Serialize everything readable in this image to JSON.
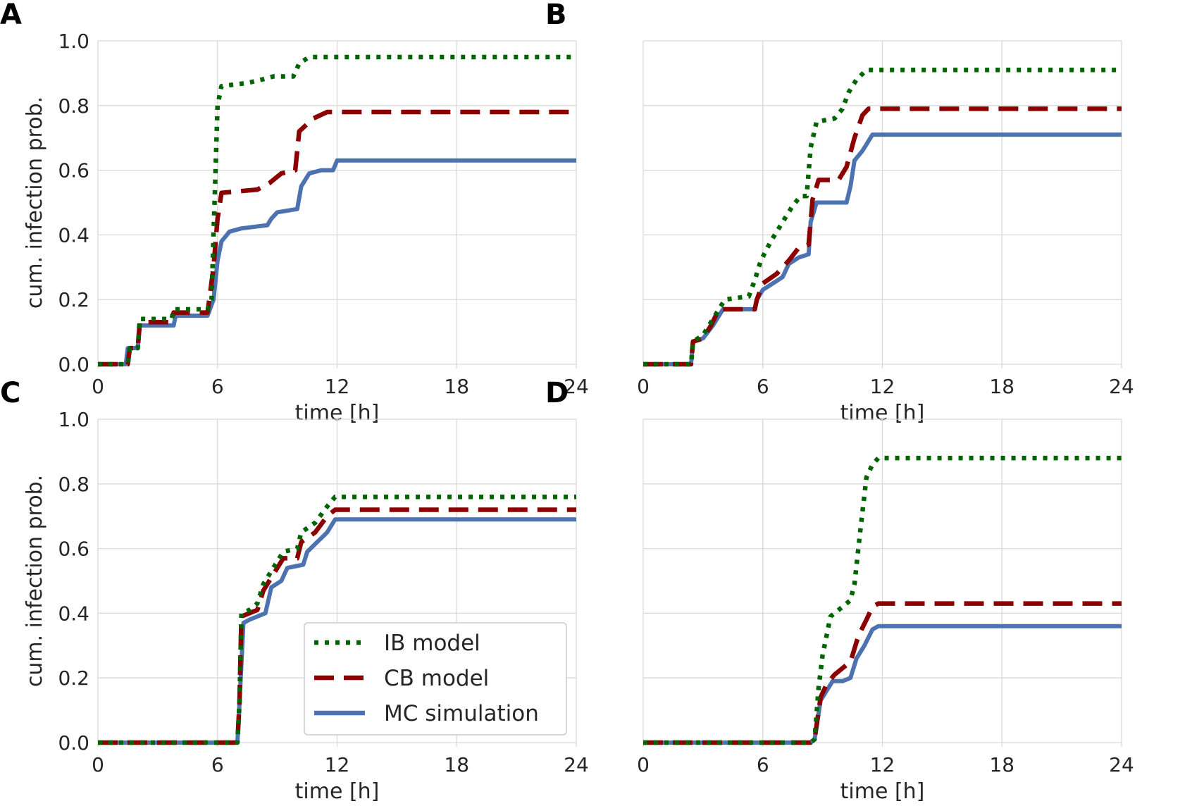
{
  "figure": {
    "panels": [
      "A",
      "B",
      "C",
      "D"
    ],
    "xlabel": "time [h]",
    "ylabel": "cum. infection prob.",
    "xticks": [
      "0",
      "6",
      "12",
      "18",
      "24"
    ],
    "yticks": [
      "0.0",
      "0.2",
      "0.4",
      "0.6",
      "0.8",
      "1.0"
    ]
  },
  "legend": {
    "items": [
      {
        "label": "IB model",
        "color": "#006400",
        "style": "dotted"
      },
      {
        "label": "CB model",
        "color": "#8b0000",
        "style": "dashed"
      },
      {
        "label": "MC simulation",
        "color": "#4c72b0",
        "style": "solid"
      }
    ],
    "placement": "lower-right (panel C)"
  },
  "chart_data": [
    {
      "panel": "A",
      "type": "line",
      "xlim": [
        0,
        24
      ],
      "ylim": [
        0,
        1
      ],
      "grid": true,
      "series": [
        {
          "name": "IB model",
          "color": "#006400",
          "style": "dotted",
          "points": [
            [
              0,
              0
            ],
            [
              1.5,
              0
            ],
            [
              1.6,
              0.05
            ],
            [
              2.0,
              0.05
            ],
            [
              2.1,
              0.14
            ],
            [
              3.7,
              0.14
            ],
            [
              3.8,
              0.17
            ],
            [
              5.5,
              0.17
            ],
            [
              5.7,
              0.2
            ],
            [
              5.8,
              0.4
            ],
            [
              6.0,
              0.8
            ],
            [
              6.2,
              0.86
            ],
            [
              7.5,
              0.87
            ],
            [
              8.2,
              0.88
            ],
            [
              8.8,
              0.89
            ],
            [
              9.8,
              0.89
            ],
            [
              10.1,
              0.93
            ],
            [
              10.6,
              0.95
            ],
            [
              24,
              0.95
            ]
          ]
        },
        {
          "name": "CB model",
          "color": "#8b0000",
          "style": "dashed",
          "points": [
            [
              0,
              0
            ],
            [
              1.5,
              0
            ],
            [
              1.6,
              0.05
            ],
            [
              2.0,
              0.05
            ],
            [
              2.1,
              0.13
            ],
            [
              3.7,
              0.13
            ],
            [
              3.8,
              0.16
            ],
            [
              5.5,
              0.16
            ],
            [
              5.8,
              0.3
            ],
            [
              6.0,
              0.45
            ],
            [
              6.2,
              0.53
            ],
            [
              8.0,
              0.54
            ],
            [
              8.6,
              0.56
            ],
            [
              9.2,
              0.59
            ],
            [
              9.9,
              0.6
            ],
            [
              10.1,
              0.72
            ],
            [
              10.8,
              0.76
            ],
            [
              11.5,
              0.78
            ],
            [
              24,
              0.78
            ]
          ]
        },
        {
          "name": "MC simulation",
          "color": "#4c72b0",
          "style": "solid",
          "points": [
            [
              0,
              0
            ],
            [
              1.4,
              0
            ],
            [
              1.5,
              0.05
            ],
            [
              2.0,
              0.05
            ],
            [
              2.1,
              0.12
            ],
            [
              3.8,
              0.12
            ],
            [
              3.9,
              0.15
            ],
            [
              5.5,
              0.15
            ],
            [
              5.8,
              0.2
            ],
            [
              6.0,
              0.32
            ],
            [
              6.2,
              0.38
            ],
            [
              6.6,
              0.41
            ],
            [
              7.2,
              0.42
            ],
            [
              8.5,
              0.43
            ],
            [
              8.7,
              0.45
            ],
            [
              9.0,
              0.47
            ],
            [
              10.0,
              0.48
            ],
            [
              10.2,
              0.55
            ],
            [
              10.6,
              0.59
            ],
            [
              11.2,
              0.6
            ],
            [
              11.8,
              0.6
            ],
            [
              12.0,
              0.63
            ],
            [
              24,
              0.63
            ]
          ]
        }
      ]
    },
    {
      "panel": "B",
      "type": "line",
      "xlim": [
        0,
        24
      ],
      "ylim": [
        0,
        1
      ],
      "grid": true,
      "series": [
        {
          "name": "IB model",
          "color": "#006400",
          "style": "dotted",
          "points": [
            [
              0,
              0
            ],
            [
              2.4,
              0
            ],
            [
              2.5,
              0.07
            ],
            [
              3.0,
              0.09
            ],
            [
              3.5,
              0.14
            ],
            [
              3.8,
              0.17
            ],
            [
              4.1,
              0.2
            ],
            [
              5.3,
              0.21
            ],
            [
              5.6,
              0.26
            ],
            [
              5.9,
              0.32
            ],
            [
              6.4,
              0.38
            ],
            [
              6.9,
              0.43
            ],
            [
              7.5,
              0.49
            ],
            [
              7.9,
              0.52
            ],
            [
              8.2,
              0.52
            ],
            [
              8.4,
              0.67
            ],
            [
              8.7,
              0.75
            ],
            [
              9.6,
              0.76
            ],
            [
              10.0,
              0.79
            ],
            [
              10.3,
              0.84
            ],
            [
              10.7,
              0.88
            ],
            [
              11.2,
              0.91
            ],
            [
              24,
              0.91
            ]
          ]
        },
        {
          "name": "CB model",
          "color": "#8b0000",
          "style": "dashed",
          "points": [
            [
              0,
              0
            ],
            [
              2.4,
              0
            ],
            [
              2.5,
              0.07
            ],
            [
              3.0,
              0.08
            ],
            [
              3.4,
              0.12
            ],
            [
              3.8,
              0.17
            ],
            [
              5.6,
              0.17
            ],
            [
              5.7,
              0.2
            ],
            [
              6.0,
              0.25
            ],
            [
              6.7,
              0.28
            ],
            [
              7.3,
              0.32
            ],
            [
              7.8,
              0.36
            ],
            [
              8.3,
              0.37
            ],
            [
              8.5,
              0.51
            ],
            [
              8.8,
              0.57
            ],
            [
              9.8,
              0.57
            ],
            [
              10.2,
              0.61
            ],
            [
              10.6,
              0.7
            ],
            [
              11.0,
              0.77
            ],
            [
              11.3,
              0.79
            ],
            [
              24,
              0.79
            ]
          ]
        },
        {
          "name": "MC simulation",
          "color": "#4c72b0",
          "style": "solid",
          "points": [
            [
              0,
              0
            ],
            [
              2.4,
              0
            ],
            [
              2.5,
              0.07
            ],
            [
              3.0,
              0.08
            ],
            [
              3.5,
              0.12
            ],
            [
              4.0,
              0.17
            ],
            [
              5.6,
              0.17
            ],
            [
              5.7,
              0.2
            ],
            [
              6.0,
              0.23
            ],
            [
              6.5,
              0.25
            ],
            [
              7.0,
              0.27
            ],
            [
              7.3,
              0.31
            ],
            [
              7.8,
              0.33
            ],
            [
              8.3,
              0.34
            ],
            [
              8.4,
              0.44
            ],
            [
              8.7,
              0.5
            ],
            [
              10.2,
              0.5
            ],
            [
              10.4,
              0.55
            ],
            [
              10.6,
              0.63
            ],
            [
              11.0,
              0.66
            ],
            [
              11.2,
              0.68
            ],
            [
              11.5,
              0.71
            ],
            [
              24,
              0.71
            ]
          ]
        }
      ]
    },
    {
      "panel": "C",
      "type": "line",
      "xlim": [
        0,
        24
      ],
      "ylim": [
        0,
        1
      ],
      "grid": true,
      "series": [
        {
          "name": "IB model",
          "color": "#006400",
          "style": "dotted",
          "points": [
            [
              0,
              0
            ],
            [
              7.0,
              0
            ],
            [
              7.1,
              0.12
            ],
            [
              7.2,
              0.4
            ],
            [
              7.6,
              0.41
            ],
            [
              8.0,
              0.43
            ],
            [
              8.3,
              0.49
            ],
            [
              8.7,
              0.53
            ],
            [
              9.3,
              0.59
            ],
            [
              10.0,
              0.6
            ],
            [
              10.2,
              0.65
            ],
            [
              10.9,
              0.68
            ],
            [
              11.5,
              0.73
            ],
            [
              11.9,
              0.76
            ],
            [
              24,
              0.76
            ]
          ]
        },
        {
          "name": "CB model",
          "color": "#8b0000",
          "style": "dashed",
          "points": [
            [
              0,
              0
            ],
            [
              7.0,
              0
            ],
            [
              7.1,
              0.12
            ],
            [
              7.2,
              0.39
            ],
            [
              7.6,
              0.4
            ],
            [
              8.0,
              0.41
            ],
            [
              8.3,
              0.47
            ],
            [
              8.7,
              0.51
            ],
            [
              9.3,
              0.57
            ],
            [
              10.0,
              0.57
            ],
            [
              10.2,
              0.62
            ],
            [
              10.9,
              0.65
            ],
            [
              11.5,
              0.7
            ],
            [
              11.9,
              0.72
            ],
            [
              24,
              0.72
            ]
          ]
        },
        {
          "name": "MC simulation",
          "color": "#4c72b0",
          "style": "solid",
          "points": [
            [
              0,
              0
            ],
            [
              7.0,
              0
            ],
            [
              7.1,
              0.12
            ],
            [
              7.3,
              0.37
            ],
            [
              7.6,
              0.38
            ],
            [
              8.4,
              0.4
            ],
            [
              8.7,
              0.48
            ],
            [
              9.2,
              0.5
            ],
            [
              9.5,
              0.54
            ],
            [
              10.3,
              0.55
            ],
            [
              10.5,
              0.59
            ],
            [
              11.0,
              0.62
            ],
            [
              11.5,
              0.65
            ],
            [
              11.9,
              0.69
            ],
            [
              24,
              0.69
            ]
          ]
        }
      ]
    },
    {
      "panel": "D",
      "type": "line",
      "xlim": [
        0,
        24
      ],
      "ylim": [
        0,
        1
      ],
      "grid": true,
      "series": [
        {
          "name": "IB model",
          "color": "#006400",
          "style": "dotted",
          "points": [
            [
              0,
              0
            ],
            [
              8.4,
              0
            ],
            [
              8.6,
              0.01
            ],
            [
              8.8,
              0.17
            ],
            [
              9.0,
              0.27
            ],
            [
              9.4,
              0.39
            ],
            [
              9.8,
              0.41
            ],
            [
              10.4,
              0.44
            ],
            [
              10.6,
              0.49
            ],
            [
              10.9,
              0.66
            ],
            [
              11.2,
              0.82
            ],
            [
              11.5,
              0.86
            ],
            [
              11.8,
              0.88
            ],
            [
              24,
              0.88
            ]
          ]
        },
        {
          "name": "CB model",
          "color": "#8b0000",
          "style": "dashed",
          "points": [
            [
              0,
              0
            ],
            [
              8.4,
              0
            ],
            [
              8.6,
              0.01
            ],
            [
              8.9,
              0.14
            ],
            [
              9.2,
              0.18
            ],
            [
              9.6,
              0.21
            ],
            [
              10.0,
              0.23
            ],
            [
              10.4,
              0.25
            ],
            [
              10.8,
              0.33
            ],
            [
              11.2,
              0.38
            ],
            [
              11.5,
              0.42
            ],
            [
              11.8,
              0.43
            ],
            [
              24,
              0.43
            ]
          ]
        },
        {
          "name": "MC simulation",
          "color": "#4c72b0",
          "style": "solid",
          "points": [
            [
              0,
              0
            ],
            [
              8.4,
              0
            ],
            [
              8.6,
              0.01
            ],
            [
              8.9,
              0.13
            ],
            [
              9.2,
              0.16
            ],
            [
              9.5,
              0.19
            ],
            [
              10.0,
              0.19
            ],
            [
              10.4,
              0.2
            ],
            [
              10.7,
              0.26
            ],
            [
              11.1,
              0.3
            ],
            [
              11.5,
              0.35
            ],
            [
              11.8,
              0.36
            ],
            [
              24,
              0.36
            ]
          ]
        }
      ]
    }
  ]
}
